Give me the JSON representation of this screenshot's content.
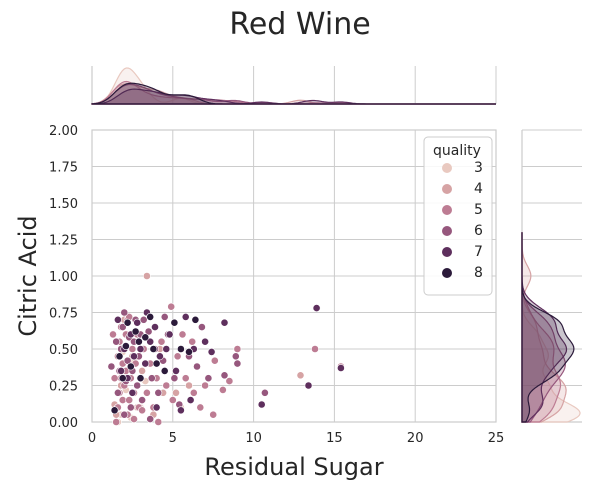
{
  "chart_data": {
    "type": "scatter",
    "title": "Red Wine",
    "xlabel": "Residual Sugar",
    "ylabel": "Citric Acid",
    "xlim": [
      0,
      25
    ],
    "ylim": [
      0,
      2.0
    ],
    "x_ticks": [
      "0",
      "5",
      "10",
      "15",
      "20",
      "25"
    ],
    "y_ticks": [
      "0.00",
      "0.25",
      "0.50",
      "0.75",
      "1.00",
      "1.25",
      "1.50",
      "1.75",
      "2.00"
    ],
    "grid": true,
    "legend": {
      "title": "quality",
      "position": "top-right"
    },
    "series": [
      {
        "name": "3",
        "color": "#e9c9c0",
        "points": [
          [
            1.6,
            0.0
          ],
          [
            2.1,
            0.22
          ],
          [
            2.6,
            0.42
          ],
          [
            3.0,
            0.1
          ],
          [
            1.9,
            0.48
          ],
          [
            2.4,
            0.03
          ],
          [
            5.5,
            0.1
          ],
          [
            3.3,
            0.28
          ],
          [
            2.2,
            0.6
          ],
          [
            1.8,
            0.05
          ]
        ]
      },
      {
        "name": "4",
        "color": "#d6a3a4",
        "points": [
          [
            1.5,
            0.05
          ],
          [
            1.8,
            0.25
          ],
          [
            2.2,
            0.6
          ],
          [
            3.4,
            1.0
          ],
          [
            12.9,
            0.32
          ],
          [
            3.1,
            0.35
          ],
          [
            2.8,
            0.1
          ],
          [
            4.4,
            0.2
          ],
          [
            2.0,
            0.7
          ],
          [
            1.4,
            0.12
          ],
          [
            2.5,
            0.45
          ],
          [
            5.2,
            0.2
          ],
          [
            3.8,
            0.05
          ],
          [
            4.2,
            0.5
          ],
          [
            6.0,
            0.25
          ]
        ]
      },
      {
        "name": "5",
        "color": "#bd7c93",
        "points": [
          [
            1.5,
            0.0
          ],
          [
            1.6,
            0.1
          ],
          [
            1.7,
            0.2
          ],
          [
            1.8,
            0.3
          ],
          [
            1.9,
            0.4
          ],
          [
            2.0,
            0.5
          ],
          [
            2.1,
            0.6
          ],
          [
            2.2,
            0.7
          ],
          [
            1.6,
            0.45
          ],
          [
            1.7,
            0.55
          ],
          [
            1.8,
            0.65
          ],
          [
            1.9,
            0.15
          ],
          [
            2.0,
            0.25
          ],
          [
            2.1,
            0.35
          ],
          [
            2.2,
            0.05
          ],
          [
            2.3,
            0.15
          ],
          [
            2.4,
            0.3
          ],
          [
            2.5,
            0.5
          ],
          [
            2.6,
            0.2
          ],
          [
            2.7,
            0.4
          ],
          [
            2.8,
            0.6
          ],
          [
            2.9,
            0.1
          ],
          [
            3.0,
            0.3
          ],
          [
            3.2,
            0.5
          ],
          [
            3.4,
            0.2
          ],
          [
            3.6,
            0.4
          ],
          [
            3.8,
            0.1
          ],
          [
            4.0,
            0.3
          ],
          [
            4.3,
            0.55
          ],
          [
            4.6,
            0.25
          ],
          [
            5.0,
            0.15
          ],
          [
            5.3,
            0.45
          ],
          [
            5.8,
            0.3
          ],
          [
            6.3,
            0.2
          ],
          [
            7.0,
            0.25
          ],
          [
            7.6,
            0.42
          ],
          [
            8.1,
            0.22
          ],
          [
            9.0,
            0.5
          ],
          [
            13.8,
            0.5
          ],
          [
            15.4,
            0.38
          ],
          [
            7.5,
            0.05
          ],
          [
            1.4,
            0.3
          ],
          [
            1.3,
            0.6
          ],
          [
            2.3,
            0.72
          ],
          [
            4.9,
            0.79
          ],
          [
            6.2,
            0.55
          ],
          [
            2.6,
            0.02
          ],
          [
            3.1,
            0.08
          ],
          [
            5.6,
            0.6
          ],
          [
            8.5,
            0.28
          ],
          [
            6.7,
            0.1
          ],
          [
            4.1,
            0.0
          ]
        ]
      },
      {
        "name": "6",
        "color": "#96577d",
        "points": [
          [
            1.6,
            0.2
          ],
          [
            1.7,
            0.35
          ],
          [
            1.8,
            0.5
          ],
          [
            1.9,
            0.65
          ],
          [
            2.0,
            0.05
          ],
          [
            2.1,
            0.28
          ],
          [
            2.2,
            0.42
          ],
          [
            2.3,
            0.58
          ],
          [
            2.4,
            0.1
          ],
          [
            2.5,
            0.35
          ],
          [
            2.6,
            0.55
          ],
          [
            2.7,
            0.7
          ],
          [
            2.8,
            0.25
          ],
          [
            2.9,
            0.45
          ],
          [
            3.0,
            0.6
          ],
          [
            3.1,
            0.15
          ],
          [
            3.3,
            0.4
          ],
          [
            3.5,
            0.62
          ],
          [
            3.7,
            0.3
          ],
          [
            3.9,
            0.5
          ],
          [
            4.1,
            0.2
          ],
          [
            4.4,
            0.42
          ],
          [
            4.7,
            0.6
          ],
          [
            5.1,
            0.3
          ],
          [
            5.5,
            0.5
          ],
          [
            6.0,
            0.45
          ],
          [
            6.5,
            0.38
          ],
          [
            7.2,
            0.3
          ],
          [
            8.2,
            0.32
          ],
          [
            8.9,
            0.45
          ],
          [
            10.7,
            0.2
          ],
          [
            9.0,
            0.4
          ],
          [
            1.2,
            0.38
          ],
          [
            2.0,
            0.75
          ],
          [
            3.2,
            0.7
          ],
          [
            4.5,
            0.72
          ],
          [
            5.4,
            0.12
          ],
          [
            6.8,
            0.65
          ],
          [
            1.5,
            0.55
          ],
          [
            3.6,
            0.02
          ]
        ]
      },
      {
        "name": "7",
        "color": "#5e2f5d",
        "points": [
          [
            1.8,
            0.35
          ],
          [
            2.0,
            0.5
          ],
          [
            2.2,
            0.3
          ],
          [
            2.4,
            0.6
          ],
          [
            2.6,
            0.45
          ],
          [
            2.8,
            0.68
          ],
          [
            3.0,
            0.5
          ],
          [
            3.3,
            0.4
          ],
          [
            3.6,
            0.55
          ],
          [
            3.9,
            0.65
          ],
          [
            4.2,
            0.45
          ],
          [
            4.6,
            0.5
          ],
          [
            5.2,
            0.35
          ],
          [
            5.8,
            0.72
          ],
          [
            6.3,
            0.5
          ],
          [
            7.0,
            0.55
          ],
          [
            7.4,
            0.48
          ],
          [
            8.2,
            0.68
          ],
          [
            10.5,
            0.12
          ],
          [
            13.4,
            0.25
          ],
          [
            13.9,
            0.78
          ],
          [
            15.4,
            0.37
          ],
          [
            5.5,
            0.08
          ],
          [
            4.0,
            0.1
          ],
          [
            2.5,
            0.2
          ],
          [
            4.8,
            0.6
          ],
          [
            6.1,
            0.15
          ],
          [
            3.4,
            0.75
          ],
          [
            1.6,
            0.7
          ]
        ]
      },
      {
        "name": "8",
        "color": "#2b1a3a",
        "points": [
          [
            1.4,
            0.08
          ],
          [
            1.9,
            0.3
          ],
          [
            2.1,
            0.52
          ],
          [
            2.4,
            0.38
          ],
          [
            2.7,
            0.62
          ],
          [
            3.0,
            0.3
          ],
          [
            3.3,
            0.58
          ],
          [
            3.6,
            0.72
          ],
          [
            4.0,
            0.4
          ],
          [
            4.5,
            0.35
          ],
          [
            5.1,
            0.68
          ],
          [
            5.5,
            0.5
          ],
          [
            6.0,
            0.48
          ],
          [
            6.4,
            0.7
          ],
          [
            2.2,
            0.68
          ],
          [
            2.9,
            0.55
          ],
          [
            3.8,
            0.5
          ],
          [
            1.7,
            0.45
          ]
        ]
      }
    ]
  }
}
